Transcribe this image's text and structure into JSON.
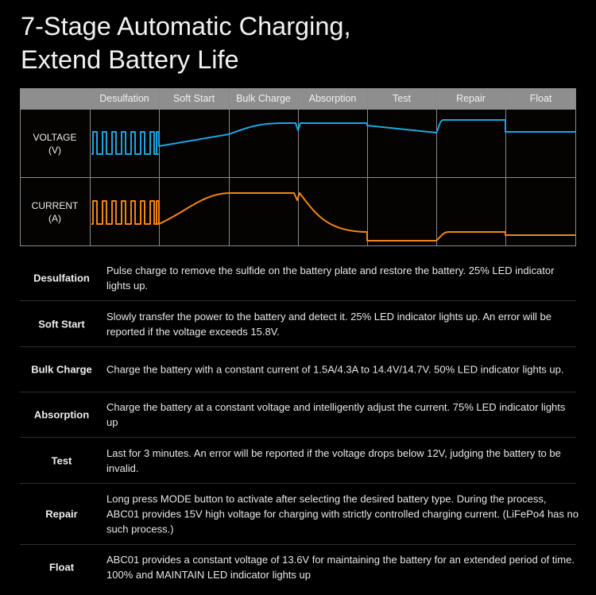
{
  "title": {
    "line1": "7-Stage Automatic Charging,",
    "line2": "Extend Battery Life"
  },
  "chart": {
    "stages": [
      "Desulfation",
      "Soft Start",
      "Bulk Charge",
      "Absorption",
      "Test",
      "Repair",
      "Float"
    ],
    "voltage_label": {
      "line1": "VOLTAGE",
      "line2": "(V)"
    },
    "current_label": {
      "line1": "CURRENT",
      "line2": "(A)"
    },
    "colors": {
      "voltage": "#1ba6e0",
      "current": "#f0870f",
      "header_bg": "#8e8e8e",
      "grid": "#8a8a8a"
    }
  },
  "stages": [
    {
      "name": "Desulfation",
      "description": "Pulse charge to remove the sulfide on the battery plate and restore the battery. 25% LED indicator lights up."
    },
    {
      "name": "Soft Start",
      "description": "Slowly transfer the power to the battery and detect it. 25% LED indicator lights up. An error will be reported if the voltage exceeds 15.8V."
    },
    {
      "name": "Bulk Charge",
      "description": "Charge the battery with a constant current of 1.5A/4.3A to 14.4V/14.7V. 50% LED indicator lights up."
    },
    {
      "name": "Absorption",
      "description": "Charge the battery at a constant voltage and intelligently adjust the current. 75% LED indicator lights up"
    },
    {
      "name": "Test",
      "description": "Last for 3 minutes. An error will be reported if the voltage drops below 12V, judging the battery to be invalid."
    },
    {
      "name": "Repair",
      "description": "Long press MODE button to activate after selecting the desired battery type. During the process, ABC01 provides 15V high voltage for charging with strictly controlled charging current. (LiFePo4 has no such process.)"
    },
    {
      "name": "Float",
      "description": "ABC01 provides a constant voltage of 13.6V for maintaining the battery for an extended period of time. 100% and MAINTAIN LED indicator lights up"
    }
  ]
}
